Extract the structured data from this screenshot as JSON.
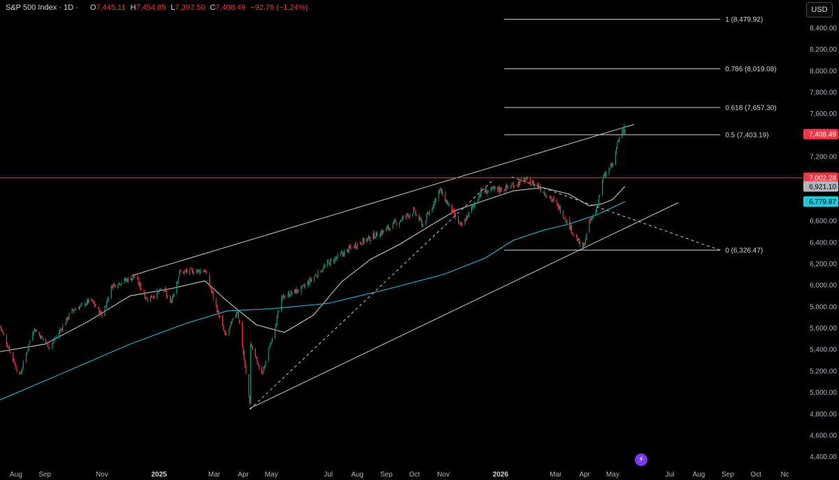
{
  "header": {
    "symbol": "S&P 500 Index · 1D ·",
    "open_label": "O",
    "open": "7,445.11",
    "high_label": "H",
    "high": "7,454.85",
    "low_label": "L",
    "low": "7,397.50",
    "close_label": "C",
    "close": "7,408.49",
    "change": "−92.76 (−1.24%)"
  },
  "currency_button": "USD",
  "colors": {
    "background": "#000000",
    "up": "#089981",
    "down": "#f23645",
    "ma_fast": "#b2b5be",
    "ma_slow": "#26a7c9",
    "lines": "#c8c8c8",
    "grid": "#000000"
  },
  "chart_data": {
    "type": "candlestick",
    "title": "S&P 500 Index · 1D",
    "xlabel": "",
    "ylabel": "",
    "ylim": [
      4300,
      8660
    ],
    "grid": false,
    "y_axis_position": "right",
    "y_ticks": [
      "8,400.00",
      "8,200.00",
      "8,000.00",
      "7,800.00",
      "7,600.00",
      "7,200.00",
      "7,000.00",
      "6,600.00",
      "6,400.00",
      "6,200.00",
      "6,000.00",
      "5,800.00",
      "5,600.00",
      "5,400.00",
      "5,200.00",
      "5,000.00",
      "4,800.00",
      "4,600.00",
      "4,400.00"
    ],
    "y_tick_values": [
      8400,
      8200,
      8000,
      7800,
      7600,
      7200,
      7000,
      6600,
      6400,
      6200,
      6000,
      5800,
      5600,
      5400,
      5200,
      5000,
      4800,
      4600,
      4400
    ],
    "x_ticks": [
      "Aug",
      "Sep",
      "Nov",
      "2025",
      "Mar",
      "Apr",
      "May",
      "Jul",
      "Aug",
      "Sep",
      "Oct",
      "Nov",
      "2026",
      "Mar",
      "Apr",
      "May",
      "Jul",
      "Aug",
      "Sep",
      "Oct",
      "Nc"
    ],
    "x_tick_dates": [
      "2024-08-01",
      "2024-09-01",
      "2024-11-01",
      "2025-01-01",
      "2025-03-01",
      "2025-04-01",
      "2025-05-01",
      "2025-07-01",
      "2025-08-01",
      "2025-09-01",
      "2025-10-01",
      "2025-11-01",
      "2026-01-01",
      "2026-03-01",
      "2026-04-01",
      "2026-05-01",
      "2026-07-01",
      "2026-08-01",
      "2026-09-01",
      "2026-10-01",
      "2026-11-01"
    ],
    "x_range": [
      "2024-07-15",
      "2026-11-20"
    ],
    "price_path": [
      [
        "2024-07-15",
        5620
      ],
      [
        "2024-08-05",
        5150
      ],
      [
        "2024-08-20",
        5600
      ],
      [
        "2024-09-06",
        5420
      ],
      [
        "2024-09-30",
        5760
      ],
      [
        "2024-10-20",
        5860
      ],
      [
        "2024-11-01",
        5720
      ],
      [
        "2024-11-12",
        6000
      ],
      [
        "2024-12-06",
        6080
      ],
      [
        "2024-12-19",
        5870
      ],
      [
        "2025-01-06",
        5960
      ],
      [
        "2025-01-13",
        5830
      ],
      [
        "2025-01-23",
        6120
      ],
      [
        "2025-02-19",
        6140
      ],
      [
        "2025-03-13",
        5520
      ],
      [
        "2025-03-26",
        5770
      ],
      [
        "2025-04-08",
        4900
      ],
      [
        "2025-04-09",
        5450
      ],
      [
        "2025-04-21",
        5160
      ],
      [
        "2025-05-13",
        5890
      ],
      [
        "2025-06-03",
        5970
      ],
      [
        "2025-06-30",
        6200
      ],
      [
        "2025-07-31",
        6380
      ],
      [
        "2025-08-28",
        6500
      ],
      [
        "2025-09-30",
        6690
      ],
      [
        "2025-10-10",
        6560
      ],
      [
        "2025-10-28",
        6890
      ],
      [
        "2025-11-20",
        6540
      ],
      [
        "2025-12-11",
        6870
      ],
      [
        "2026-01-05",
        6900
      ],
      [
        "2026-01-27",
        6980
      ],
      [
        "2026-02-10",
        6930
      ],
      [
        "2026-03-05",
        6720
      ],
      [
        "2026-03-30",
        6330
      ],
      [
        "2026-04-06",
        6580
      ],
      [
        "2026-04-13",
        6700
      ],
      [
        "2026-04-21",
        7000
      ],
      [
        "2026-05-01",
        7130
      ],
      [
        "2026-05-08",
        7380
      ],
      [
        "2026-05-13",
        7501
      ],
      [
        "2026-05-14",
        7408
      ]
    ],
    "last_bar": {
      "date": "2026-05-14",
      "open": 7445.11,
      "high": 7454.85,
      "low": 7397.5,
      "close": 7408.49,
      "change": -92.76,
      "change_pct": -1.24
    },
    "moving_averages": [
      {
        "color": "#b2b5be",
        "points": [
          [
            "2024-07-15",
            5380
          ],
          [
            "2024-09-01",
            5450
          ],
          [
            "2024-10-15",
            5650
          ],
          [
            "2024-12-01",
            5900
          ],
          [
            "2025-01-15",
            5970
          ],
          [
            "2025-02-19",
            6040
          ],
          [
            "2025-03-15",
            5850
          ],
          [
            "2025-04-15",
            5630
          ],
          [
            "2025-05-15",
            5560
          ],
          [
            "2025-06-15",
            5720
          ],
          [
            "2025-07-15",
            6030
          ],
          [
            "2025-08-15",
            6240
          ],
          [
            "2025-09-15",
            6380
          ],
          [
            "2025-10-15",
            6540
          ],
          [
            "2025-11-15",
            6700
          ],
          [
            "2025-12-15",
            6790
          ],
          [
            "2026-01-15",
            6880
          ],
          [
            "2026-02-15",
            6910
          ],
          [
            "2026-03-15",
            6850
          ],
          [
            "2026-04-06",
            6740
          ],
          [
            "2026-04-20",
            6760
          ],
          [
            "2026-05-01",
            6800
          ],
          [
            "2026-05-14",
            6921.1
          ]
        ]
      },
      {
        "color": "#26a7c9",
        "points": [
          [
            "2024-07-15",
            4930
          ],
          [
            "2024-09-15",
            5160
          ],
          [
            "2024-12-01",
            5450
          ],
          [
            "2025-02-01",
            5650
          ],
          [
            "2025-03-15",
            5760
          ],
          [
            "2025-05-01",
            5780
          ],
          [
            "2025-07-01",
            5830
          ],
          [
            "2025-09-01",
            5960
          ],
          [
            "2025-11-01",
            6100
          ],
          [
            "2025-12-15",
            6250
          ],
          [
            "2026-01-15",
            6420
          ],
          [
            "2026-02-15",
            6510
          ],
          [
            "2026-03-15",
            6570
          ],
          [
            "2026-04-15",
            6660
          ],
          [
            "2026-05-14",
            6779.87
          ]
        ]
      }
    ],
    "trendlines": [
      {
        "style": "solid",
        "from": [
          "2024-12-03",
          6090
        ],
        "to": [
          "2026-05-24",
          7500
        ]
      },
      {
        "style": "solid",
        "from": [
          "2025-04-08",
          4850
        ],
        "to": [
          "2026-07-10",
          6770
        ]
      },
      {
        "style": "dashed",
        "from": [
          "2025-04-08",
          4840
        ],
        "to": [
          "2025-12-24",
          6980
        ]
      },
      {
        "style": "dashed",
        "from": [
          "2026-01-13",
          7010
        ],
        "to": [
          "2026-08-24",
          6326
        ]
      }
    ],
    "fib_levels": [
      {
        "label": "1 (8,479.92)",
        "value": 8479.92
      },
      {
        "label": "0.786 (8,019.08)",
        "value": 8019.08
      },
      {
        "label": "0.618 (7,657.30)",
        "value": 7657.3
      },
      {
        "label": "0.5 (7,403.19)",
        "value": 7403.19
      },
      {
        "label": "0 (6,326.47)",
        "value": 6326.47
      }
    ],
    "fib_range": [
      "2026-01-05",
      "2026-08-24"
    ],
    "horizontal_line": {
      "value": 7002.28,
      "color": "#f23645"
    },
    "price_tags": [
      {
        "label": "7,408.49",
        "value": 7408.49,
        "bg": "#f23645",
        "fg": "#ffffff"
      },
      {
        "label": "7,002.28",
        "value": 7002.28,
        "bg": "#f23645",
        "fg": "#ffffff"
      },
      {
        "label": "6,921.10",
        "value": 6921.1,
        "bg": "#b2b5be",
        "fg": "#000000"
      },
      {
        "label": "6,779.87",
        "value": 6779.87,
        "bg": "#26c6da",
        "fg": "#000000"
      }
    ]
  }
}
